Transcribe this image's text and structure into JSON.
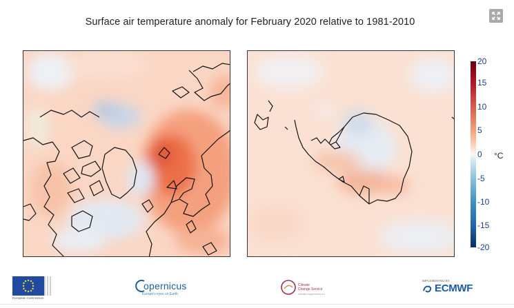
{
  "title": "Surface air temperature anomaly for February 2020 relative to 1981-2010",
  "controls": {
    "expand_icon": "expand-icon"
  },
  "maps": [
    {
      "name": "north-polar-map",
      "region": "Arctic"
    },
    {
      "name": "south-polar-map",
      "region": "Antarctica"
    }
  ],
  "colorbar": {
    "ticks": [
      "20",
      "15",
      "10",
      "5",
      "0",
      "-5",
      "-10",
      "-15",
      "-20"
    ],
    "unit": "°C",
    "range": [
      -20,
      20
    ],
    "colors": {
      "max": "#67000d",
      "warm": "#d6604d",
      "neutral": "#f7f7f7",
      "cool": "#4393c3",
      "min": "#053061"
    }
  },
  "logos": {
    "eu": {
      "text": "European Commission"
    },
    "copernicus": {
      "name": "opernicus",
      "tagline": "Europe's eyes on Earth"
    },
    "c3s": {
      "line1": "Climate",
      "line2": "Change Service",
      "url": "climate.copernicus.eu"
    },
    "ecmwf": {
      "small": "IMPLEMENTED BY",
      "name": "ECMWF"
    }
  }
}
